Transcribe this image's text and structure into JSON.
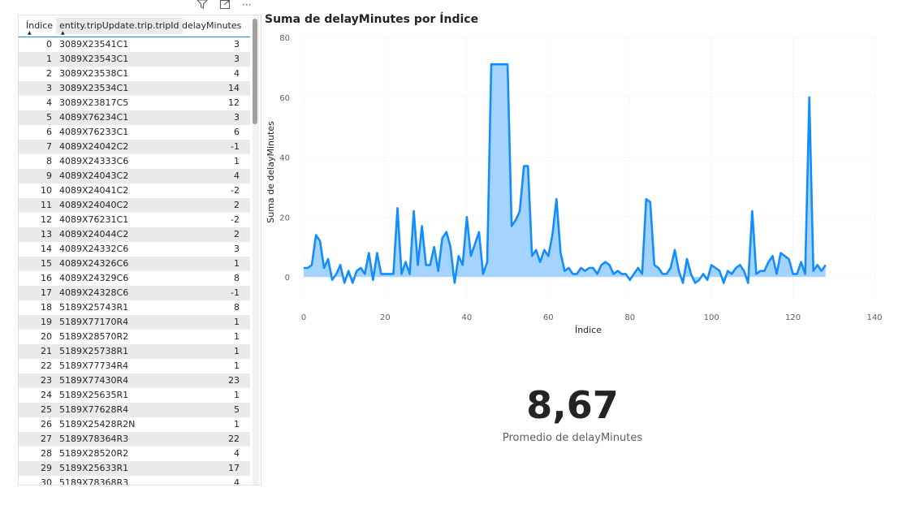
{
  "toolbar": {
    "filter_icon": "filter-icon",
    "focus_icon": "focus-mode-icon",
    "more_label": "···"
  },
  "table": {
    "headers": {
      "index": "Índice",
      "trip": "entity.tripUpdate.trip.tripId",
      "delay": "delayMinutes"
    },
    "rows": [
      [
        "0",
        "3089X23541C1",
        "3"
      ],
      [
        "1",
        "3089X23543C1",
        "3"
      ],
      [
        "2",
        "3089X23538C1",
        "4"
      ],
      [
        "3",
        "3089X23534C1",
        "14"
      ],
      [
        "4",
        "3089X23817C5",
        "12"
      ],
      [
        "5",
        "4089X76234C1",
        "3"
      ],
      [
        "6",
        "4089X76233C1",
        "6"
      ],
      [
        "7",
        "4089X24042C2",
        "-1"
      ],
      [
        "8",
        "4089X24333C6",
        "1"
      ],
      [
        "9",
        "4089X24043C2",
        "4"
      ],
      [
        "10",
        "4089X24041C2",
        "-2"
      ],
      [
        "11",
        "4089X24040C2",
        "2"
      ],
      [
        "12",
        "4089X76231C1",
        "-2"
      ],
      [
        "13",
        "4089X24044C2",
        "2"
      ],
      [
        "14",
        "4089X24332C6",
        "3"
      ],
      [
        "15",
        "4089X24326C6",
        "1"
      ],
      [
        "16",
        "4089X24329C6",
        "8"
      ],
      [
        "17",
        "4089X24328C6",
        "-1"
      ],
      [
        "18",
        "5189X25743R1",
        "8"
      ],
      [
        "19",
        "5189X77170R4",
        "1"
      ],
      [
        "20",
        "5189X28570R2",
        "1"
      ],
      [
        "21",
        "5189X25738R1",
        "1"
      ],
      [
        "22",
        "5189X77734R4",
        "1"
      ],
      [
        "23",
        "5189X77430R4",
        "23"
      ],
      [
        "24",
        "5189X25635R1",
        "1"
      ],
      [
        "25",
        "5189X77628R4",
        "5"
      ],
      [
        "26",
        "5189X25428R2N",
        "1"
      ],
      [
        "27",
        "5189X78364R3",
        "22"
      ],
      [
        "28",
        "5189X28520R2",
        "4"
      ],
      [
        "29",
        "5189X25633R1",
        "17"
      ],
      [
        "30",
        "5189X78368R3",
        "4"
      ]
    ]
  },
  "chart": {
    "title": "Suma de delayMinutes por Índice"
  },
  "chart_data": {
    "type": "area",
    "title": "Suma de delayMinutes por Índice",
    "xlabel": "Índice",
    "ylabel": "Suma de delayMinutes",
    "xlim": [
      0,
      140
    ],
    "ylim": [
      -10,
      80
    ],
    "xticks": [
      0,
      20,
      40,
      60,
      80,
      100,
      120,
      140
    ],
    "yticks": [
      0,
      20,
      40,
      60,
      80
    ],
    "grid": true,
    "color": "#118DFF",
    "fill": "#A0D1FF",
    "x": [
      0,
      1,
      2,
      3,
      4,
      5,
      6,
      7,
      8,
      9,
      10,
      11,
      12,
      13,
      14,
      15,
      16,
      17,
      18,
      19,
      20,
      21,
      22,
      23,
      24,
      25,
      26,
      27,
      28,
      29,
      30,
      31,
      32,
      33,
      34,
      35,
      36,
      37,
      38,
      39,
      40,
      41,
      42,
      43,
      44,
      45,
      46,
      47,
      48,
      49,
      50,
      51,
      52,
      53,
      54,
      55,
      56,
      57,
      58,
      59,
      60,
      61,
      62,
      63,
      64,
      65,
      66,
      67,
      68,
      69,
      70,
      71,
      72,
      73,
      74,
      75,
      76,
      77,
      78,
      79,
      80,
      81,
      82,
      83,
      84,
      85,
      86,
      87,
      88,
      89,
      90,
      91,
      92,
      93,
      94,
      95,
      96,
      97,
      98,
      99,
      100,
      101,
      102,
      103,
      104,
      105,
      106,
      107,
      108,
      109,
      110,
      111,
      112,
      113,
      114,
      115,
      116,
      117,
      118,
      119,
      120,
      121,
      122,
      123,
      124,
      125,
      126,
      127,
      128
    ],
    "y": [
      3,
      3,
      4,
      14,
      12,
      3,
      6,
      -1,
      1,
      4,
      -2,
      2,
      -2,
      2,
      3,
      1,
      8,
      -1,
      8,
      1,
      1,
      1,
      1,
      23,
      1,
      5,
      1,
      22,
      4,
      17,
      4,
      4,
      10,
      2,
      13,
      15,
      10,
      -2,
      7,
      4,
      20,
      7,
      11,
      15,
      1,
      5,
      71,
      71,
      71,
      71,
      71,
      17,
      19,
      22,
      37,
      37,
      7,
      9,
      5,
      9,
      7,
      14,
      26,
      8,
      2,
      3,
      1,
      1,
      3,
      2,
      3,
      3,
      1,
      4,
      5,
      4,
      1,
      2,
      1,
      1,
      -1,
      1,
      3,
      1,
      26,
      25,
      4,
      3,
      1,
      1,
      3,
      9,
      2,
      -2,
      6,
      1,
      -2,
      -1,
      1,
      -1,
      4,
      3,
      2,
      -2,
      2,
      1,
      3,
      4,
      2,
      -2,
      22,
      1,
      2,
      2,
      5,
      7,
      1,
      8,
      7,
      6,
      1,
      1,
      5,
      1,
      60,
      2,
      4,
      2,
      4
    ]
  },
  "card": {
    "value": "8,67",
    "label": "Promedio de delayMinutes"
  }
}
